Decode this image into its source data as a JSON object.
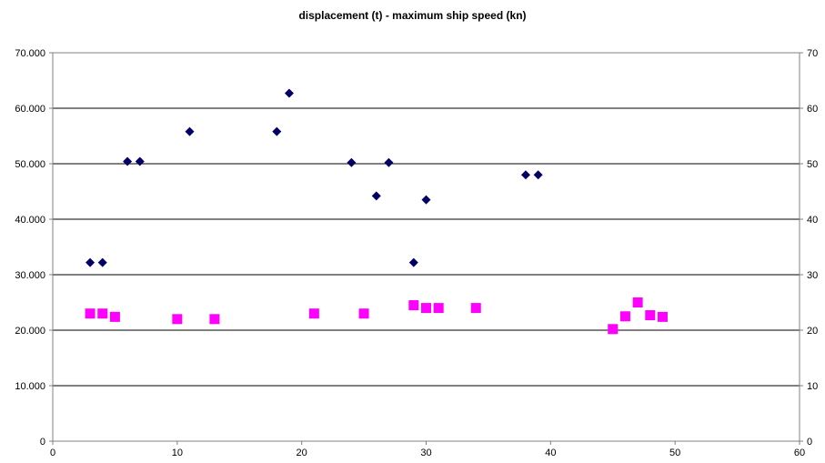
{
  "chart_data": {
    "type": "scatter",
    "title": "displacement (t) - maximum ship speed (kn)",
    "xlabel": "",
    "ylabel_left": "",
    "ylabel_right": "",
    "xlim": [
      0,
      60
    ],
    "ylim_left": [
      0,
      70000
    ],
    "ylim_right": [
      0,
      70
    ],
    "x_ticks": [
      "0",
      "10",
      "20",
      "30",
      "40",
      "50",
      "60"
    ],
    "y_left_ticks": [
      "0",
      "10.000",
      "20.000",
      "30.000",
      "40.000",
      "50.000",
      "60.000",
      "70.000"
    ],
    "y_right_ticks": [
      "0",
      "10",
      "20",
      "30",
      "40",
      "50",
      "60",
      "70"
    ],
    "grid": "horizontal",
    "legend": "none",
    "series": [
      {
        "axis": "left",
        "marker": "diamond",
        "color": "#000066",
        "points": [
          [
            3,
            32200
          ],
          [
            4,
            32200
          ],
          [
            6,
            50400
          ],
          [
            7,
            50400
          ],
          [
            11,
            55800
          ],
          [
            18,
            55800
          ],
          [
            19,
            62700
          ],
          [
            24,
            50200
          ],
          [
            26,
            44200
          ],
          [
            27,
            50200
          ],
          [
            29,
            32200
          ],
          [
            30,
            43500
          ],
          [
            38,
            48000
          ],
          [
            39,
            48000
          ]
        ]
      },
      {
        "axis": "right",
        "marker": "square",
        "color": "#ff00ff",
        "points": [
          [
            3,
            23
          ],
          [
            4,
            23
          ],
          [
            5,
            22.4
          ],
          [
            10,
            22
          ],
          [
            13,
            22
          ],
          [
            21,
            23
          ],
          [
            25,
            23
          ],
          [
            29,
            24.5
          ],
          [
            30,
            24
          ],
          [
            31,
            24
          ],
          [
            34,
            24
          ],
          [
            45,
            20.2
          ],
          [
            46,
            22.5
          ],
          [
            47,
            25
          ],
          [
            48,
            22.7
          ],
          [
            49,
            22.4
          ]
        ]
      }
    ]
  }
}
